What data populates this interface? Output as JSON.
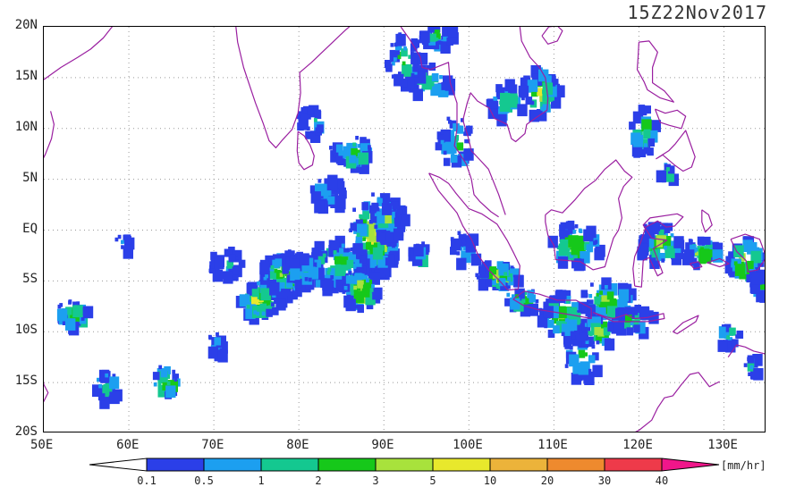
{
  "title": "15Z22Nov2017",
  "map": {
    "lat_labels": [
      "20N",
      "15N",
      "10N",
      "5N",
      "EQ",
      "5S",
      "10S",
      "15S",
      "20S"
    ],
    "lat_values": [
      20,
      15,
      10,
      5,
      0,
      -5,
      -10,
      -15,
      -20
    ],
    "lon_labels": [
      "50E",
      "60E",
      "70E",
      "80E",
      "90E",
      "100E",
      "110E",
      "120E",
      "130E"
    ],
    "lon_values": [
      50,
      60,
      70,
      80,
      90,
      100,
      110,
      120,
      130
    ],
    "lon_range": [
      50,
      135
    ],
    "lat_range": [
      -20,
      20
    ],
    "coastline_color": "#9a1fa0",
    "grid": true
  },
  "colorbar": {
    "tick_labels": [
      "0.1",
      "0.5",
      "1",
      "2",
      "3",
      "5",
      "10",
      "20",
      "30",
      "40"
    ],
    "colors": [
      "#ffffff",
      "#2b3fe8",
      "#1c9ff0",
      "#14c890",
      "#16c81a",
      "#a8e23c",
      "#e8e82c",
      "#ecb33a",
      "#ee8a2e",
      "#ee3a4a",
      "#f0168a"
    ],
    "unit": "[mm/hr]"
  }
}
